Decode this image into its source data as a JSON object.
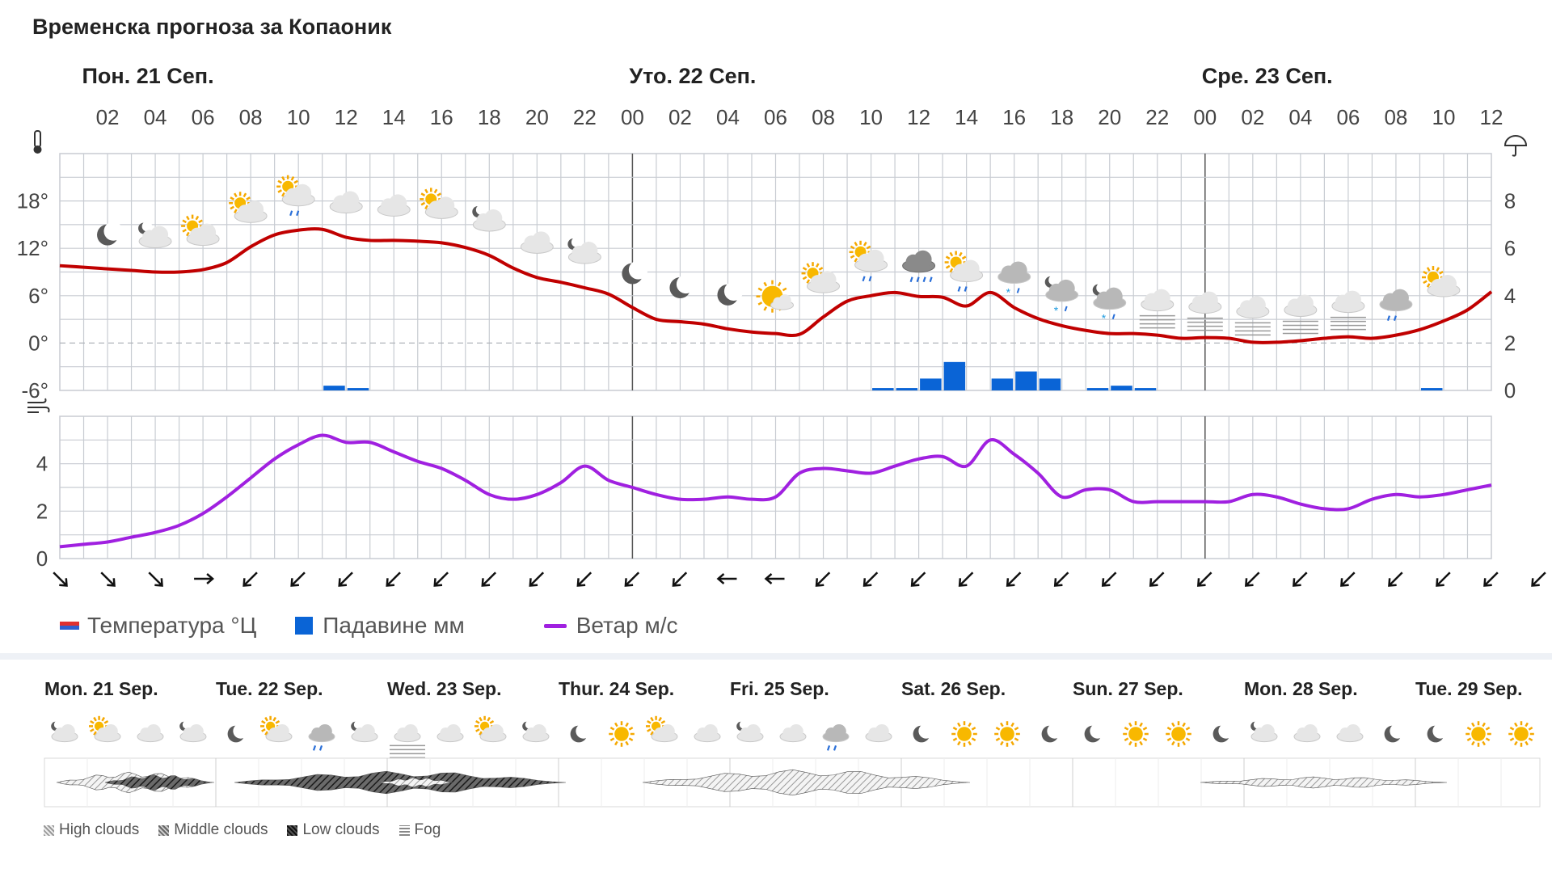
{
  "title": "Временска прогноза за Копаоник",
  "days": [
    {
      "label": "Пон. 21 Сеп.",
      "hour": 1
    },
    {
      "label": "Уто. 22 Сеп.",
      "hour": 24
    },
    {
      "label": "Сре. 23 Сеп.",
      "hour": 48
    }
  ],
  "hour_labels": [
    "02",
    "04",
    "06",
    "08",
    "10",
    "12",
    "14",
    "16",
    "18",
    "20",
    "22",
    "00",
    "02",
    "04",
    "06",
    "08",
    "10",
    "12",
    "14",
    "16",
    "18",
    "20",
    "22",
    "00",
    "02",
    "04",
    "06",
    "08",
    "10",
    "12"
  ],
  "temp_axis_labels": [
    "18°",
    "12°",
    "6°",
    "0°",
    "-6°"
  ],
  "precip_axis_labels": [
    "8",
    "6",
    "4",
    "2",
    "0"
  ],
  "wind_axis_labels": [
    "4",
    "2",
    "0"
  ],
  "legend": {
    "temperature": "Температура °Ц",
    "precipitation": "Падавине мм",
    "wind": "Ветар м/с"
  },
  "colors": {
    "temperature": "#c00000",
    "temperature_swatch_top": "#e03030",
    "temperature_swatch_bottom": "#3060d0",
    "precipitation": "#0a64d6",
    "wind": "#a020e0",
    "grid": "#c8ccd2",
    "zero_line": "#b0b4ba"
  },
  "chart_data": [
    {
      "type": "line",
      "name": "temperature",
      "x_unit": "hours from Mon 00:00",
      "ylim": [
        -6,
        24
      ],
      "y_ticks": [
        -6,
        0,
        6,
        12,
        18
      ],
      "x": [
        0,
        1,
        2,
        3,
        4,
        5,
        6,
        7,
        8,
        9,
        10,
        11,
        12,
        13,
        14,
        15,
        16,
        17,
        18,
        19,
        20,
        21,
        22,
        23,
        24,
        25,
        26,
        27,
        28,
        29,
        30,
        31,
        32,
        33,
        34,
        35,
        36,
        37,
        38,
        39,
        40,
        41,
        42,
        43,
        44,
        45,
        46,
        47,
        48,
        49,
        50,
        51,
        52,
        53,
        54,
        55,
        56,
        57,
        58,
        59,
        60
      ],
      "values": [
        9.8,
        9.6,
        9.4,
        9.2,
        9.0,
        9.0,
        9.3,
        10.2,
        12.2,
        13.7,
        14.3,
        14.4,
        13.4,
        13.0,
        13.0,
        12.9,
        12.7,
        12.1,
        11.1,
        9.5,
        8.3,
        7.7,
        7.0,
        6.2,
        4.5,
        3.0,
        2.7,
        2.4,
        1.8,
        1.4,
        1.2,
        1.1,
        3.3,
        5.3,
        6.0,
        6.4,
        5.9,
        5.8,
        4.7,
        6.4,
        4.5,
        3.1,
        2.2,
        1.6,
        1.2,
        1.2,
        1.0,
        0.6,
        0.7,
        0.6,
        0.1,
        0.1,
        0.3,
        0.6,
        0.8,
        0.6,
        1.0,
        1.7,
        2.8,
        4.2,
        6.5
      ]
    },
    {
      "type": "bar",
      "name": "precipitation",
      "unit": "mm",
      "ylim": [
        0,
        10
      ],
      "y_ticks": [
        0,
        2,
        4,
        6,
        8
      ],
      "x": [
        11,
        12,
        34,
        35,
        36,
        37,
        39,
        40,
        41,
        43,
        44,
        45,
        57
      ],
      "values": [
        0.2,
        0.1,
        0.1,
        0.1,
        0.5,
        1.2,
        0.5,
        0.8,
        0.5,
        0.1,
        0.2,
        0.1,
        0.1
      ]
    },
    {
      "type": "line",
      "name": "wind",
      "unit": "m/s",
      "ylim": [
        0,
        6
      ],
      "y_ticks": [
        0,
        2,
        4
      ],
      "x": [
        0,
        1,
        2,
        3,
        4,
        5,
        6,
        7,
        8,
        9,
        10,
        11,
        12,
        13,
        14,
        15,
        16,
        17,
        18,
        19,
        20,
        21,
        22,
        23,
        24,
        25,
        26,
        27,
        28,
        29,
        30,
        31,
        32,
        33,
        34,
        35,
        36,
        37,
        38,
        39,
        40,
        41,
        42,
        43,
        44,
        45,
        46,
        47,
        48,
        49,
        50,
        51,
        52,
        53,
        54,
        55,
        56,
        57,
        58,
        59,
        60
      ],
      "values": [
        0.5,
        0.6,
        0.7,
        0.9,
        1.1,
        1.4,
        1.9,
        2.6,
        3.4,
        4.2,
        4.8,
        5.2,
        4.9,
        4.9,
        4.5,
        4.1,
        3.8,
        3.3,
        2.7,
        2.5,
        2.7,
        3.2,
        3.9,
        3.3,
        3.0,
        2.7,
        2.5,
        2.5,
        2.6,
        2.5,
        2.6,
        3.6,
        3.8,
        3.7,
        3.6,
        3.9,
        4.2,
        4.3,
        3.9,
        5.0,
        4.4,
        3.6,
        2.6,
        2.9,
        2.9,
        2.4,
        2.4,
        2.4,
        2.4,
        2.4,
        2.7,
        2.6,
        2.3,
        2.1,
        2.1,
        2.5,
        2.7,
        2.6,
        2.7,
        2.9,
        3.1
      ]
    }
  ],
  "wind_directions": [
    "SW",
    "SW",
    "SW",
    "S",
    "NW",
    "NW",
    "NW",
    "NW",
    "NW",
    "NW",
    "NW",
    "NW",
    "NW",
    "NW",
    "N",
    "N",
    "NW",
    "NW",
    "NW",
    "NW",
    "NW",
    "NW",
    "NW",
    "NW",
    "NW",
    "NW",
    "NW",
    "NW",
    "NW",
    "NW",
    "NW",
    "NW"
  ],
  "hourly_icons": [
    "moon",
    "cloud-moon",
    "cloud-sun",
    "cloud-sun",
    "cloud-sun-rain",
    "cloud",
    "cloud",
    "cloud-sun",
    "cloud-moon",
    "cloud",
    "cloud-moon",
    "moon",
    "moon",
    "moon",
    "sun-cloud",
    "cloud-sun",
    "cloud-sun-rain",
    "heavy-rain-cloud",
    "cloud-sun-rain",
    "snow-cloud",
    "snow-cloud-moon",
    "snow-cloud-moon",
    "fog-cloud",
    "fog-cloud",
    "fog-cloud",
    "fog-cloud",
    "fog-cloud",
    "rain-cloud",
    "cloud-sun"
  ],
  "weekly": {
    "days": [
      "Mon. 21 Sep.",
      "Tue. 22 Sep.",
      "Wed. 23 Sep.",
      "Thur. 24 Sep.",
      "Fri. 25 Sep.",
      "Sat. 26 Sep.",
      "Sun. 27 Sep.",
      "Mon. 28 Sep.",
      "Tue. 29 Sep."
    ],
    "icons": [
      "cloud-moon",
      "cloud-sun",
      "cloud",
      "cloud-moon",
      "moon",
      "cloud-sun",
      "cloud-rain",
      "cloud-moon",
      "fog-cloud",
      "cloud",
      "cloud-sun",
      "cloud-moon",
      "moon",
      "sun",
      "cloud-sun",
      "cloud",
      "cloud-moon",
      "cloud",
      "cloud-rain",
      "cloud",
      "moon",
      "sun",
      "sun",
      "moon",
      "moon",
      "sun",
      "sun",
      "moon",
      "cloud-moon",
      "cloud",
      "cloud",
      "moon",
      "moon",
      "sun",
      "sun"
    ],
    "cloud_legend": [
      "High clouds",
      "Middle clouds",
      "Low clouds",
      "Fog"
    ]
  }
}
